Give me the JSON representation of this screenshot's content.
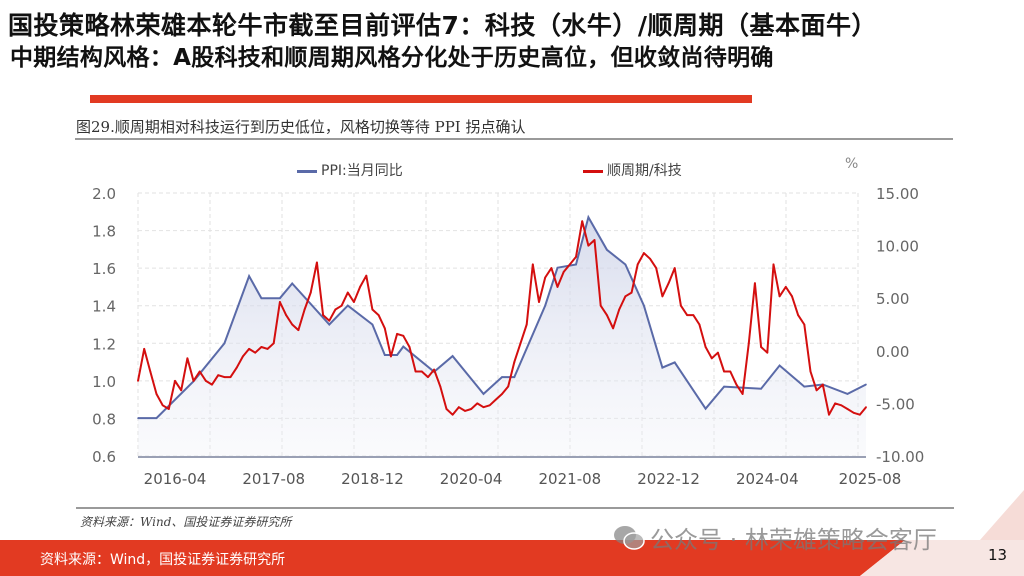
{
  "header": {
    "title": "国投策略林荣雄本轮牛市截至目前评估7：科技（水牛）/顺周期（基本面牛）",
    "subtitle": "中期结构风格：A股科技和顺周期风格分化处于历史高位，但收敛尚待明确"
  },
  "figure": {
    "caption": "图29.顺周期相对科技运行到历史低位，风格切换等待 PPI 拐点确认",
    "source_inner": "资料来源：Wind、国投证券证券研究所",
    "unit_right": "%"
  },
  "footer": {
    "source": "资料来源：Wind，国投证券证券研究所",
    "page_number": "13",
    "watermark": "公众号 · 林荣雄策略会客厅"
  },
  "colors": {
    "accent_red": "#e23a22",
    "ppi_line": "#5a6aa8",
    "ratio_line": "#d40f0f"
  },
  "chart_data": {
    "type": "line",
    "grid": true,
    "legend_placement": "top",
    "x_tick_labels": [
      "2016-04",
      "2017-08",
      "2018-12",
      "2020-04",
      "2021-08",
      "2022-12",
      "2024-04",
      "2025-08"
    ],
    "y_left": {
      "ticks": [
        "0.6",
        "0.8",
        "1.0",
        "1.2",
        "1.4",
        "1.6",
        "1.8",
        "2.0"
      ],
      "lim": [
        0.6,
        2.0
      ]
    },
    "y_right": {
      "ticks": [
        "-10.00",
        "-5.00",
        "0.00",
        "5.00",
        "10.00",
        "15.00"
      ],
      "lim": [
        -10,
        15
      ]
    },
    "series": [
      {
        "name": "PPI:当月同比",
        "axis": "right",
        "style": "area-line",
        "points": [
          [
            "2015-10",
            -6.4
          ],
          [
            "2016-01",
            -6.4
          ],
          [
            "2016-07",
            -2.9
          ],
          [
            "2016-12",
            0.7
          ],
          [
            "2017-04",
            7.1
          ],
          [
            "2017-06",
            5.0
          ],
          [
            "2017-09",
            5.0
          ],
          [
            "2017-11",
            6.4
          ],
          [
            "2018-05",
            2.5
          ],
          [
            "2018-08",
            4.3
          ],
          [
            "2018-12",
            2.5
          ],
          [
            "2019-02",
            -0.4
          ],
          [
            "2019-04",
            -0.4
          ],
          [
            "2019-05",
            0.4
          ],
          [
            "2019-10",
            -2.0
          ],
          [
            "2020-01",
            -0.5
          ],
          [
            "2020-06",
            -4.1
          ],
          [
            "2020-09",
            -2.5
          ],
          [
            "2020-11",
            -2.5
          ],
          [
            "2021-04",
            4.3
          ],
          [
            "2021-06",
            7.9
          ],
          [
            "2021-09",
            8.2
          ],
          [
            "2021-11",
            12.7
          ],
          [
            "2022-02",
            9.6
          ],
          [
            "2022-05",
            8.2
          ],
          [
            "2022-08",
            4.3
          ],
          [
            "2022-11",
            -1.6
          ],
          [
            "2023-01",
            -1.1
          ],
          [
            "2023-06",
            -5.5
          ],
          [
            "2023-09",
            -3.4
          ],
          [
            "2024-03",
            -3.6
          ],
          [
            "2024-06",
            -1.4
          ],
          [
            "2024-10",
            -3.4
          ],
          [
            "2025-01",
            -3.2
          ],
          [
            "2025-05",
            -4.1
          ],
          [
            "2025-08",
            -3.2
          ]
        ]
      },
      {
        "name": "顺周期/科技",
        "axis": "left",
        "style": "line",
        "points": [
          [
            "2015-10",
            1.0
          ],
          [
            "2015-11",
            1.17
          ],
          [
            "2015-12",
            1.05
          ],
          [
            "2016-01",
            0.93
          ],
          [
            "2016-02",
            0.87
          ],
          [
            "2016-03",
            0.85
          ],
          [
            "2016-04",
            1.0
          ],
          [
            "2016-05",
            0.95
          ],
          [
            "2016-06",
            1.12
          ],
          [
            "2016-07",
            1.0
          ],
          [
            "2016-08",
            1.05
          ],
          [
            "2016-09",
            1.0
          ],
          [
            "2016-10",
            0.98
          ],
          [
            "2016-11",
            1.03
          ],
          [
            "2016-12",
            1.02
          ],
          [
            "2017-01",
            1.02
          ],
          [
            "2017-02",
            1.07
          ],
          [
            "2017-03",
            1.13
          ],
          [
            "2017-04",
            1.17
          ],
          [
            "2017-05",
            1.15
          ],
          [
            "2017-06",
            1.18
          ],
          [
            "2017-07",
            1.17
          ],
          [
            "2017-08",
            1.2
          ],
          [
            "2017-09",
            1.42
          ],
          [
            "2017-10",
            1.35
          ],
          [
            "2017-11",
            1.3
          ],
          [
            "2017-12",
            1.27
          ],
          [
            "2018-01",
            1.38
          ],
          [
            "2018-02",
            1.47
          ],
          [
            "2018-03",
            1.63
          ],
          [
            "2018-04",
            1.35
          ],
          [
            "2018-05",
            1.32
          ],
          [
            "2018-06",
            1.38
          ],
          [
            "2018-07",
            1.4
          ],
          [
            "2018-08",
            1.47
          ],
          [
            "2018-09",
            1.42
          ],
          [
            "2018-10",
            1.5
          ],
          [
            "2018-11",
            1.56
          ],
          [
            "2018-12",
            1.38
          ],
          [
            "2019-01",
            1.35
          ],
          [
            "2019-02",
            1.28
          ],
          [
            "2019-03",
            1.13
          ],
          [
            "2019-04",
            1.25
          ],
          [
            "2019-05",
            1.24
          ],
          [
            "2019-06",
            1.18
          ],
          [
            "2019-07",
            1.05
          ],
          [
            "2019-08",
            1.05
          ],
          [
            "2019-09",
            1.02
          ],
          [
            "2019-10",
            1.06
          ],
          [
            "2019-11",
            0.97
          ],
          [
            "2019-12",
            0.85
          ],
          [
            "2020-01",
            0.82
          ],
          [
            "2020-02",
            0.86
          ],
          [
            "2020-03",
            0.84
          ],
          [
            "2020-04",
            0.85
          ],
          [
            "2020-05",
            0.88
          ],
          [
            "2020-06",
            0.86
          ],
          [
            "2020-07",
            0.87
          ],
          [
            "2020-08",
            0.9
          ],
          [
            "2020-09",
            0.93
          ],
          [
            "2020-10",
            0.97
          ],
          [
            "2020-11",
            1.1
          ],
          [
            "2020-12",
            1.2
          ],
          [
            "2021-01",
            1.3
          ],
          [
            "2021-02",
            1.62
          ],
          [
            "2021-03",
            1.42
          ],
          [
            "2021-04",
            1.55
          ],
          [
            "2021-05",
            1.6
          ],
          [
            "2021-06",
            1.5
          ],
          [
            "2021-07",
            1.58
          ],
          [
            "2021-08",
            1.62
          ],
          [
            "2021-09",
            1.66
          ],
          [
            "2021-10",
            1.85
          ],
          [
            "2021-11",
            1.72
          ],
          [
            "2021-12",
            1.75
          ],
          [
            "2022-01",
            1.4
          ],
          [
            "2022-02",
            1.35
          ],
          [
            "2022-03",
            1.28
          ],
          [
            "2022-04",
            1.38
          ],
          [
            "2022-05",
            1.45
          ],
          [
            "2022-06",
            1.47
          ],
          [
            "2022-07",
            1.62
          ],
          [
            "2022-08",
            1.68
          ],
          [
            "2022-09",
            1.65
          ],
          [
            "2022-10",
            1.6
          ],
          [
            "2022-11",
            1.45
          ],
          [
            "2022-12",
            1.52
          ],
          [
            "2023-01",
            1.6
          ],
          [
            "2023-02",
            1.4
          ],
          [
            "2023-03",
            1.35
          ],
          [
            "2023-04",
            1.35
          ],
          [
            "2023-05",
            1.3
          ],
          [
            "2023-06",
            1.18
          ],
          [
            "2023-07",
            1.12
          ],
          [
            "2023-08",
            1.15
          ],
          [
            "2023-09",
            1.05
          ],
          [
            "2023-10",
            1.05
          ],
          [
            "2023-11",
            0.98
          ],
          [
            "2023-12",
            0.93
          ],
          [
            "2024-01",
            1.2
          ],
          [
            "2024-02",
            1.52
          ],
          [
            "2024-03",
            1.18
          ],
          [
            "2024-04",
            1.15
          ],
          [
            "2024-05",
            1.62
          ],
          [
            "2024-06",
            1.45
          ],
          [
            "2024-07",
            1.5
          ],
          [
            "2024-08",
            1.45
          ],
          [
            "2024-09",
            1.35
          ],
          [
            "2024-10",
            1.3
          ],
          [
            "2024-11",
            1.05
          ],
          [
            "2024-12",
            0.95
          ],
          [
            "2025-01",
            0.98
          ],
          [
            "2025-02",
            0.82
          ],
          [
            "2025-03",
            0.88
          ],
          [
            "2025-04",
            0.87
          ],
          [
            "2025-05",
            0.85
          ],
          [
            "2025-06",
            0.83
          ],
          [
            "2025-07",
            0.82
          ],
          [
            "2025-08",
            0.86
          ]
        ]
      }
    ]
  }
}
